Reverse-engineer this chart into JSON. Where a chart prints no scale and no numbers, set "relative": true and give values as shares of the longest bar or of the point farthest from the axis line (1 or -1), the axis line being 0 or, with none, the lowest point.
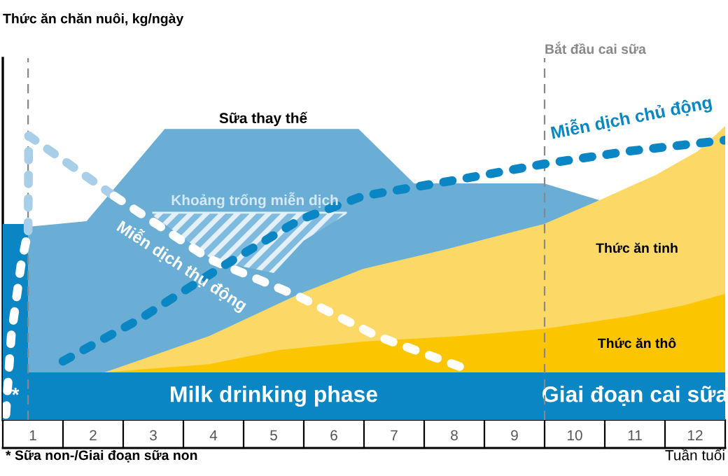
{
  "chart_data": {
    "type": "area",
    "relative": true,
    "xlabel": "Tuần tuổi",
    "xlim": [
      0,
      12
    ],
    "xticks": [
      {
        "value": 0.5,
        "label": "1"
      },
      {
        "value": 1.5,
        "label": "2"
      },
      {
        "value": 2.5,
        "label": "3"
      },
      {
        "value": 3.5,
        "label": "4"
      },
      {
        "value": 4.5,
        "label": "5"
      },
      {
        "value": 5.5,
        "label": "6"
      },
      {
        "value": 6.5,
        "label": "7"
      },
      {
        "value": 7.5,
        "label": "8"
      },
      {
        "value": 8.5,
        "label": "9"
      },
      {
        "value": 9.5,
        "label": "10"
      },
      {
        "value": 10.5,
        "label": "11"
      },
      {
        "value": 11.5,
        "label": "12"
      }
    ],
    "series": [
      {
        "color": "#6aaed6",
        "x": [
          0.42,
          1.39,
          2.69,
          5.91,
          6.83,
          8.99,
          9.91
        ],
        "values": [
          0.657,
          0.676,
          0.99,
          0.99,
          0.805,
          0.805,
          0.748
        ]
      },
      {
        "color": "#fcd966",
        "x": [
          1.69,
          3.43,
          4.93,
          5.98,
          7.37,
          8.99,
          9.91,
          10.84,
          11.54,
          12
        ],
        "values": [
          0.162,
          0.286,
          0.429,
          0.514,
          0.581,
          0.667,
          0.748,
          0.833,
          0.914,
          1.0
        ]
      },
      {
        "color": "#fbc600",
        "x": [
          1.69,
          3.43,
          4.59,
          5.98,
          7.6,
          8.99,
          10.38,
          11.31,
          12
        ],
        "values": [
          0.162,
          0.19,
          0.238,
          0.267,
          0.286,
          0.31,
          0.352,
          0.39,
          0.429
        ]
      },
      {
        "name": "*",
        "color": "#0a86c4",
        "x": [
          0,
          0.42
        ],
        "values": [
          0.667,
          0.667
        ]
      },
      {
        "type": "line",
        "line_style": "solid",
        "color": "#e4f0f8",
        "x": [
          2.5,
          3.5,
          4.5,
          5.0,
          5.7
        ],
        "values": [
          0.705,
          0.705,
          0.705,
          0.705,
          0.705
        ],
        "lower": [
          0.695,
          0.543,
          0.5,
          0.61,
          0.7
        ],
        "upper": [
          0.705,
          0.705,
          0.705,
          0.705,
          0.705
        ]
      },
      {
        "type": "line",
        "color": "#a9cfe8",
        "x": [
          0.42,
          0.43,
          1.85
        ],
        "values": [
          0.643,
          0.967,
          0.762
        ]
      },
      {
        "type": "line",
        "color": "#ffffff",
        "x": [
          0.05,
          0.14,
          0.3,
          0.42,
          1.0,
          1.85,
          3.43,
          4.93,
          6.21,
          7.6
        ],
        "values": [
          0.019,
          0.286,
          0.524,
          0.643,
          null,
          0.762,
          0.548,
          0.419,
          0.286,
          0.181
        ]
      },
      {
        "type": "line",
        "color": "#0a86c4",
        "x": [
          1.0,
          2.27,
          3.66,
          4.93,
          5.98,
          7.6,
          8.99,
          10.38,
          12
        ],
        "values": [
          0.2,
          0.343,
          0.524,
          0.681,
          0.762,
          0.819,
          0.871,
          0.914,
          0.952
        ]
      }
    ],
    "line_style": "dashed",
    "ref_lines": [
      {
        "axis": "x",
        "value": 0.42,
        "color": "#888888",
        "line_style": "dashed"
      },
      {
        "axis": "x",
        "value": 9,
        "label": "Bắt đầu cai sữa",
        "color": "#888888",
        "line_style": "dashed"
      }
    ],
    "bands": [
      {
        "axis": "x",
        "from": 0,
        "to": 9,
        "label": "Milk drinking phase",
        "color": "#0a86c4"
      },
      {
        "axis": "x",
        "from": 9,
        "to": 12,
        "label": "Giai đoạn cai sữa",
        "color": "#0a86c4"
      }
    ],
    "annotations": [
      "Sữa thay thế",
      "Khoảng trống miễn dịch",
      "Miễn dịch thụ động",
      "Miễn dịch chủ động",
      "Thức ăn tinh",
      "Thức ăn thô",
      "* Sữa non-/Giai đoạn sữa non",
      "Thức ăn chăn nuôi, kg/ngày"
    ]
  }
}
